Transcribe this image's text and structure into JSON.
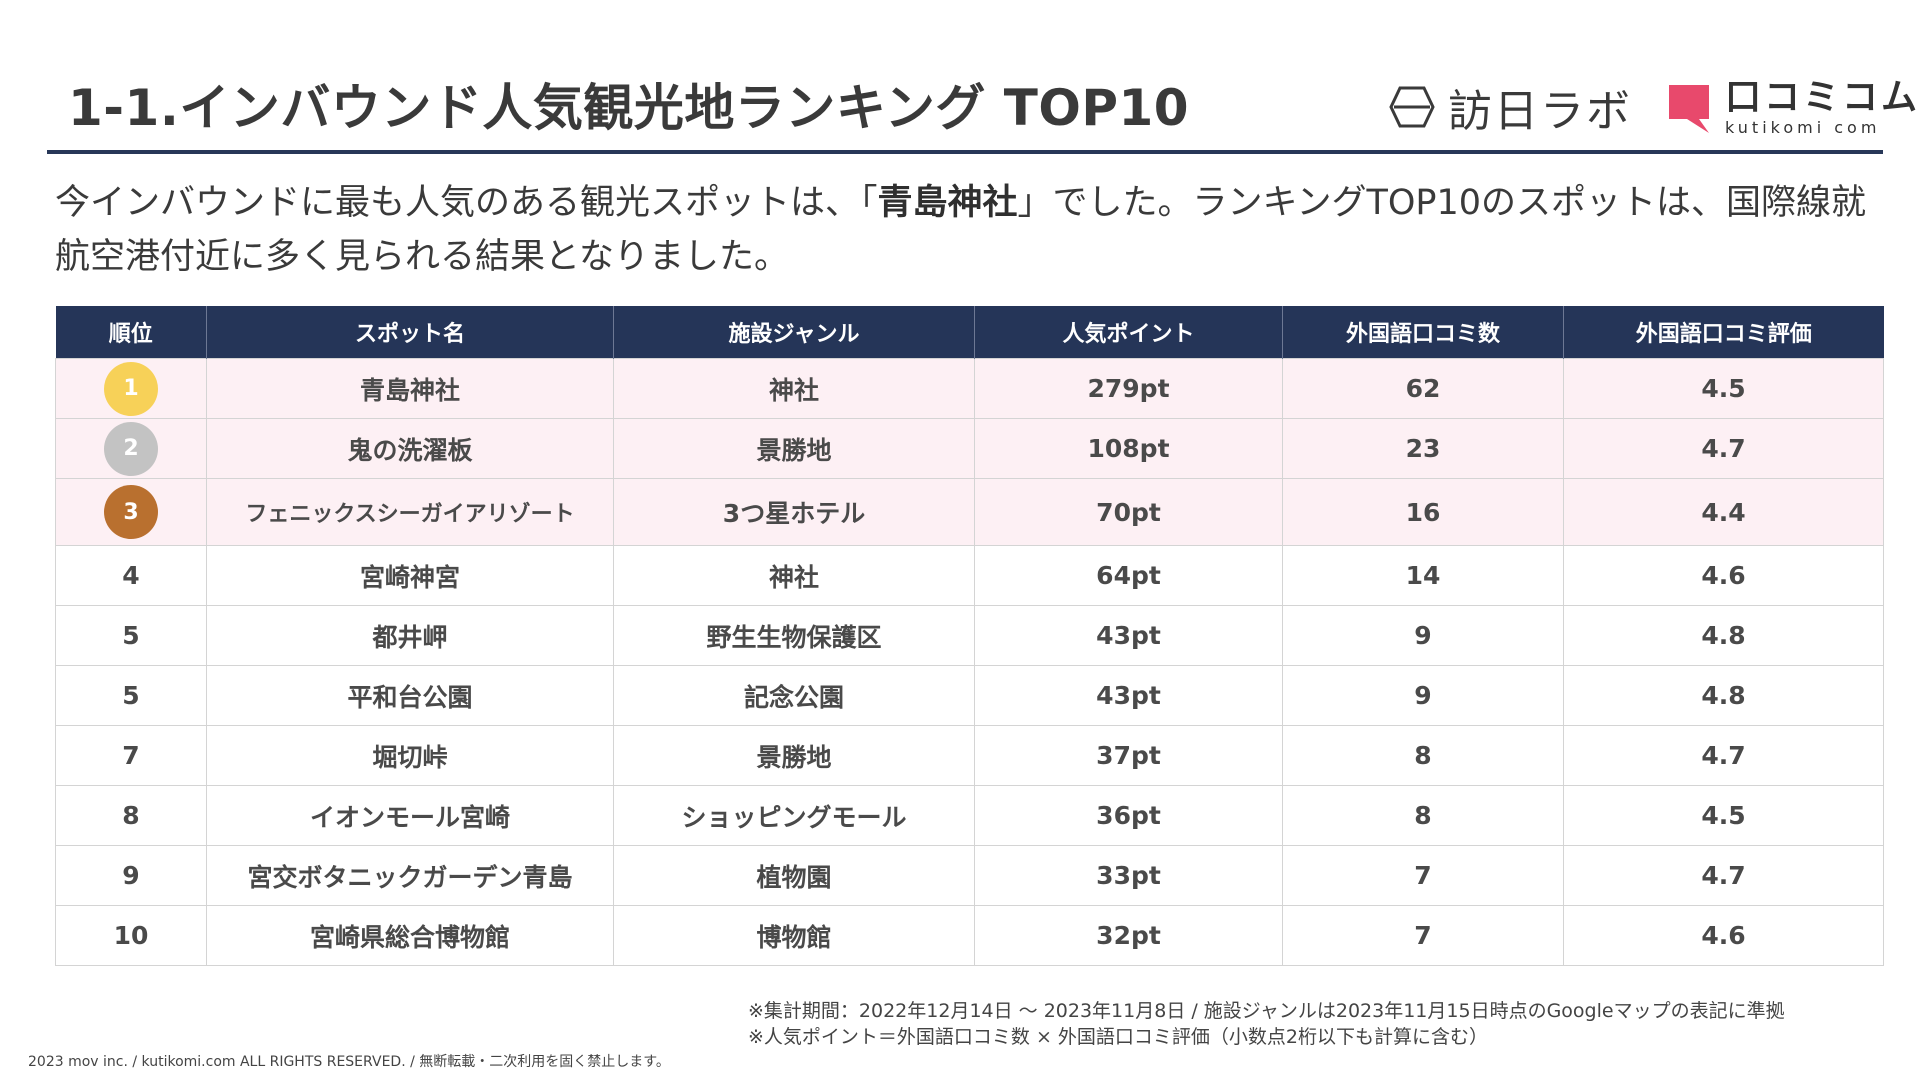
{
  "header": {
    "title": "1-1.インバウンド人気観光地ランキング TOP10",
    "brand_hounichi": "訪日ラボ",
    "brand_kutikomi": "口コミコム",
    "brand_kutikomi_sub": "kutikomi com"
  },
  "lead": {
    "part1": "今インバウンドに最も人気のある観光スポットは、「",
    "highlight": "青島神社",
    "part2": "」でした。ランキングTOP10のスポットは、国際線就航空港付近に多く見られる結果となりました。"
  },
  "table": {
    "headers": [
      "順位",
      "スポット名",
      "施設ジャンル",
      "人気ポイント",
      "外国語口コミ数",
      "外国語口コミ評価"
    ],
    "rows": [
      {
        "rank": "1",
        "name": "青島神社",
        "genre": "神社",
        "points": "279pt",
        "reviews": "62",
        "rating": "4.5"
      },
      {
        "rank": "2",
        "name": "鬼の洗濯板",
        "genre": "景勝地",
        "points": "108pt",
        "reviews": "23",
        "rating": "4.7"
      },
      {
        "rank": "3",
        "name": "フェニックスシーガイアリゾート",
        "genre": "3つ星ホテル",
        "points": "70pt",
        "reviews": "16",
        "rating": "4.4"
      },
      {
        "rank": "4",
        "name": "宮崎神宮",
        "genre": "神社",
        "points": "64pt",
        "reviews": "14",
        "rating": "4.6"
      },
      {
        "rank": "5",
        "name": "都井岬",
        "genre": "野生生物保護区",
        "points": "43pt",
        "reviews": "9",
        "rating": "4.8"
      },
      {
        "rank": "5",
        "name": "平和台公園",
        "genre": "記念公園",
        "points": "43pt",
        "reviews": "9",
        "rating": "4.8"
      },
      {
        "rank": "7",
        "name": "堀切峠",
        "genre": "景勝地",
        "points": "37pt",
        "reviews": "8",
        "rating": "4.7"
      },
      {
        "rank": "8",
        "name": "イオンモール宮崎",
        "genre": "ショッピングモール",
        "points": "36pt",
        "reviews": "8",
        "rating": "4.5"
      },
      {
        "rank": "9",
        "name": "宮交ボタニックガーデン青島",
        "genre": "植物園",
        "points": "33pt",
        "reviews": "7",
        "rating": "4.7"
      },
      {
        "rank": "10",
        "name": "宮崎県総合博物館",
        "genre": "博物館",
        "points": "32pt",
        "reviews": "7",
        "rating": "4.6"
      }
    ]
  },
  "notes": {
    "line1": "※集計期間：2022年12月14日 〜 2023年11月8日 / 施設ジャンルは2023年11月15日時点のGoogleマップの表記に準拠",
    "line2": "※人気ポイント＝外国語口コミ数 × 外国語口コミ評価（小数点2桁以下も計算に含む）"
  },
  "footer": {
    "copyright": "2023 mov inc. / kutikomi.com ALL RIGHTS RESERVED. / 無断転載・二次利用を固く禁止します。"
  },
  "colors": {
    "header_navy": "#253558",
    "top3_row_bg": "#fdf0f4",
    "medal_gold": "#f7d158",
    "medal_silver": "#c3c3c3",
    "medal_bronze": "#b9702f",
    "brand_pink": "#e8496c"
  }
}
